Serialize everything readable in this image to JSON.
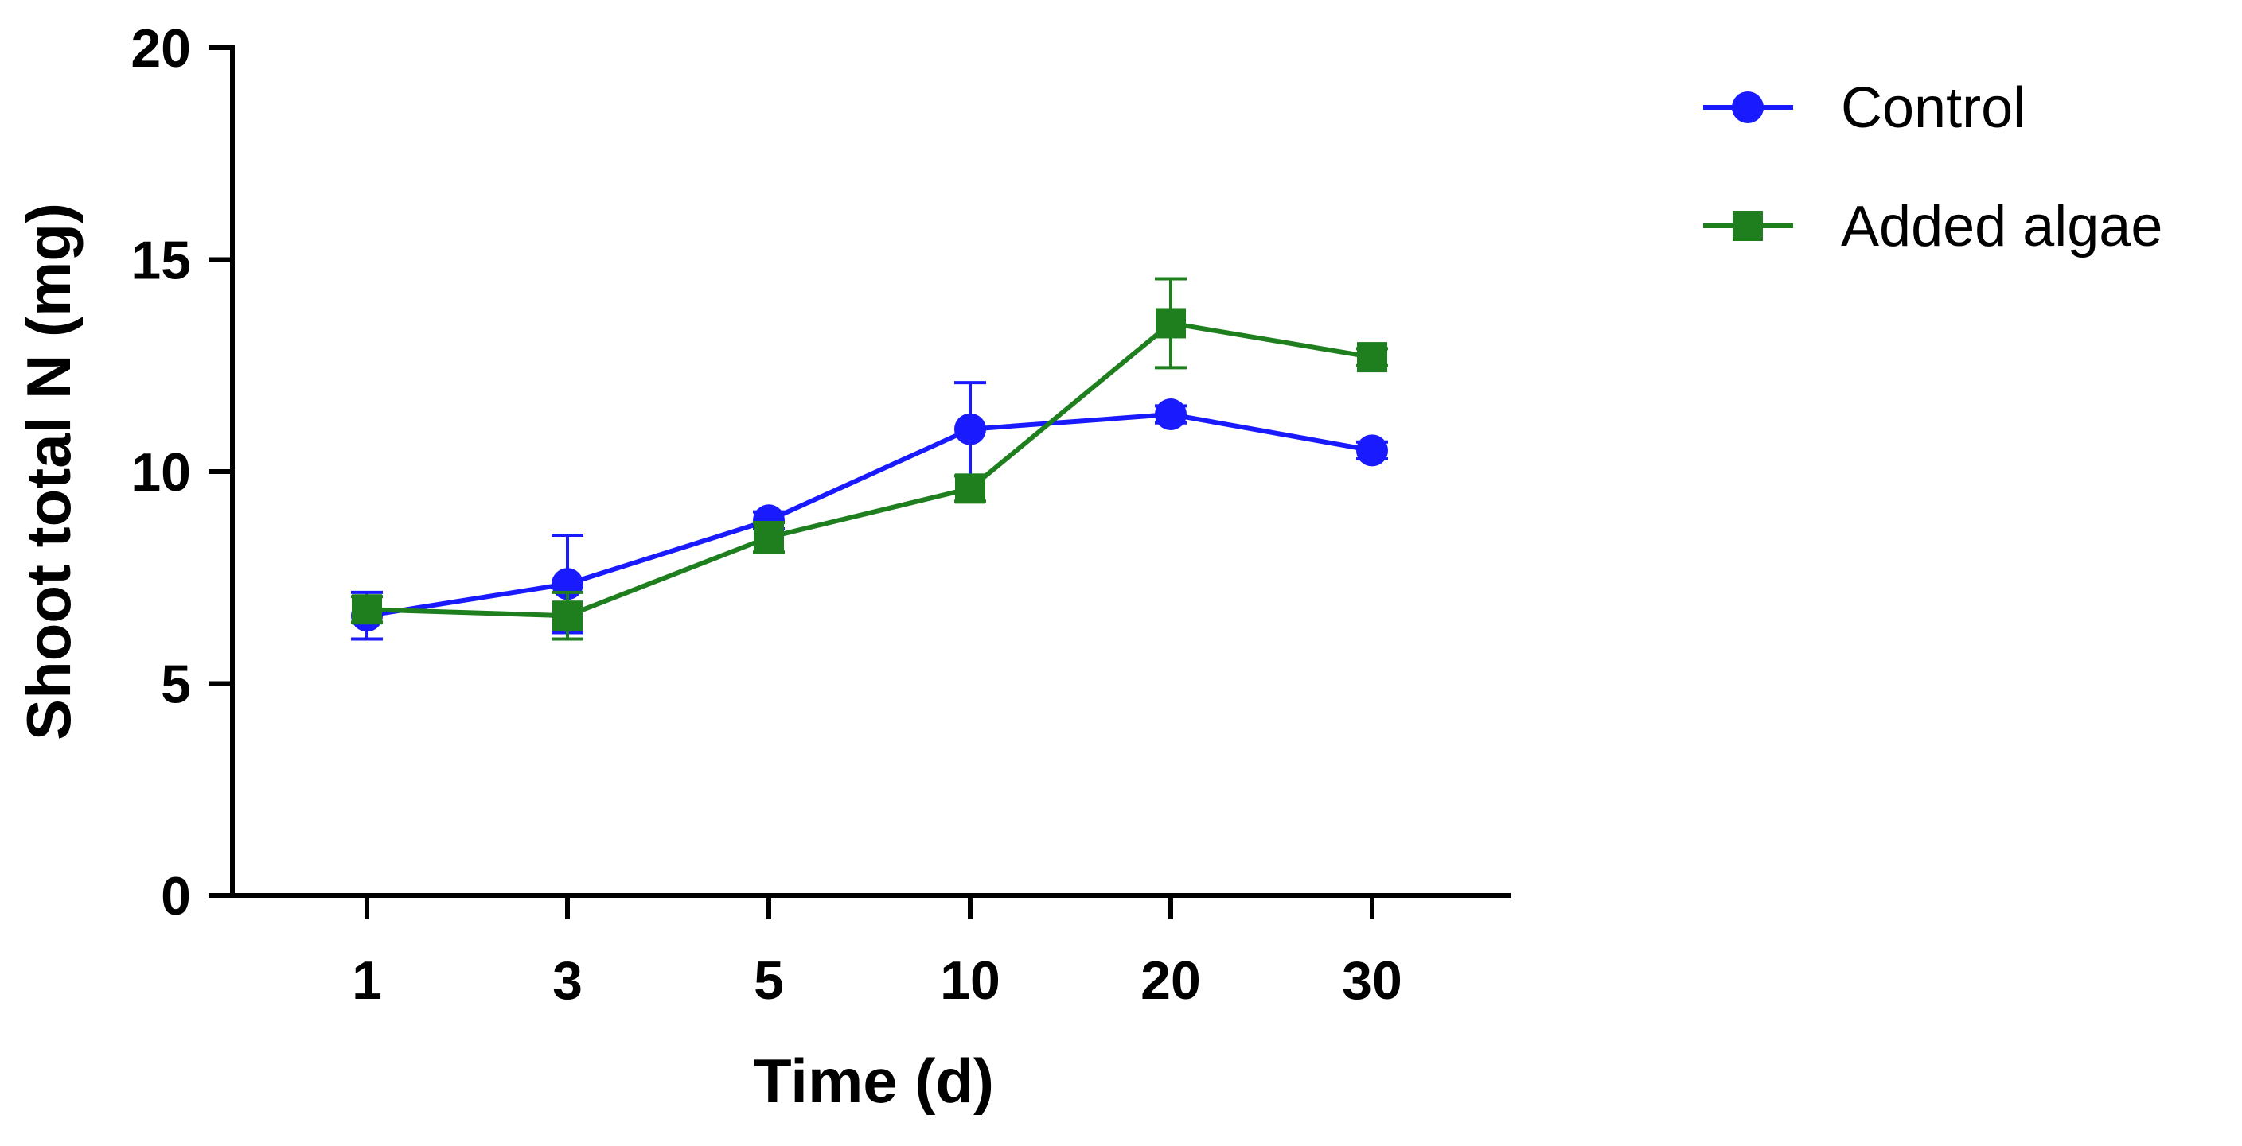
{
  "chart_data": {
    "type": "line",
    "title": "",
    "xlabel": "Time (d)",
    "ylabel": "Shoot total N (mg)",
    "categories": [
      "1",
      "3",
      "5",
      "10",
      "20",
      "30"
    ],
    "ylim": [
      0,
      20
    ],
    "yticks": [
      "0",
      "5",
      "10",
      "15",
      "20"
    ],
    "grid": false,
    "legend_position": "top-right, outside",
    "series": [
      {
        "name": "Control",
        "color": "#1a1aff",
        "marker": "circle",
        "values": [
          6.6,
          7.35,
          8.85,
          11.0,
          11.35,
          10.5
        ],
        "error": [
          0.55,
          1.15,
          0.2,
          1.1,
          0.2,
          0.2
        ]
      },
      {
        "name": "Added algae",
        "color": "#1f7f1f",
        "marker": "square",
        "values": [
          6.75,
          6.6,
          8.45,
          9.6,
          13.5,
          12.7
        ],
        "error": [
          0.3,
          0.55,
          0.35,
          0.3,
          1.05,
          0.2
        ]
      }
    ]
  }
}
